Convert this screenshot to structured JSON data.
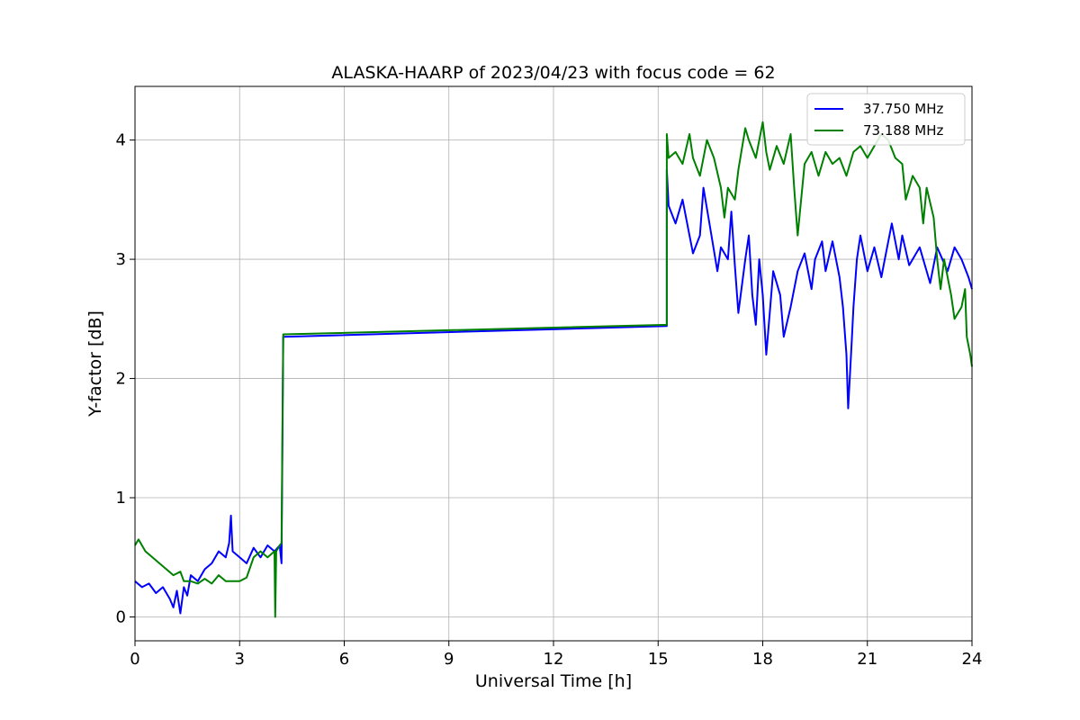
{
  "chart_data": {
    "type": "line",
    "title": "ALASKA-HAARP of 2023/04/23 with focus code = 62",
    "xlabel": "Universal Time [h]",
    "ylabel": "Y-factor [dB]",
    "xlim": [
      0,
      24
    ],
    "ylim": [
      -0.2,
      4.45
    ],
    "xticks": [
      0,
      3,
      6,
      9,
      12,
      15,
      18,
      21,
      24
    ],
    "yticks": [
      0,
      1,
      2,
      3,
      4
    ],
    "grid": true,
    "legend_position": "top-right",
    "series": [
      {
        "name": "37.750 MHz",
        "color": "#0000ff",
        "points": [
          [
            0.0,
            0.3
          ],
          [
            0.2,
            0.25
          ],
          [
            0.4,
            0.28
          ],
          [
            0.6,
            0.2
          ],
          [
            0.8,
            0.25
          ],
          [
            1.0,
            0.15
          ],
          [
            1.1,
            0.08
          ],
          [
            1.2,
            0.22
          ],
          [
            1.3,
            0.03
          ],
          [
            1.4,
            0.25
          ],
          [
            1.5,
            0.18
          ],
          [
            1.6,
            0.35
          ],
          [
            1.8,
            0.3
          ],
          [
            2.0,
            0.4
          ],
          [
            2.2,
            0.45
          ],
          [
            2.4,
            0.55
          ],
          [
            2.6,
            0.5
          ],
          [
            2.7,
            0.62
          ],
          [
            2.75,
            0.85
          ],
          [
            2.8,
            0.55
          ],
          [
            3.0,
            0.5
          ],
          [
            3.2,
            0.45
          ],
          [
            3.4,
            0.58
          ],
          [
            3.6,
            0.5
          ],
          [
            3.8,
            0.6
          ],
          [
            4.0,
            0.55
          ],
          [
            4.15,
            0.6
          ],
          [
            4.2,
            0.45
          ],
          [
            4.25,
            2.35
          ],
          [
            15.25,
            2.44
          ],
          [
            15.25,
            3.75
          ],
          [
            15.3,
            3.45
          ],
          [
            15.5,
            3.3
          ],
          [
            15.7,
            3.5
          ],
          [
            15.9,
            3.2
          ],
          [
            16.0,
            3.05
          ],
          [
            16.2,
            3.2
          ],
          [
            16.3,
            3.6
          ],
          [
            16.5,
            3.25
          ],
          [
            16.7,
            2.9
          ],
          [
            16.8,
            3.1
          ],
          [
            17.0,
            3.0
          ],
          [
            17.1,
            3.4
          ],
          [
            17.2,
            2.95
          ],
          [
            17.3,
            2.55
          ],
          [
            17.5,
            3.0
          ],
          [
            17.6,
            3.2
          ],
          [
            17.7,
            2.7
          ],
          [
            17.8,
            2.45
          ],
          [
            17.9,
            3.0
          ],
          [
            18.0,
            2.7
          ],
          [
            18.1,
            2.2
          ],
          [
            18.2,
            2.55
          ],
          [
            18.3,
            2.9
          ],
          [
            18.5,
            2.7
          ],
          [
            18.6,
            2.35
          ],
          [
            18.8,
            2.6
          ],
          [
            19.0,
            2.9
          ],
          [
            19.2,
            3.05
          ],
          [
            19.4,
            2.75
          ],
          [
            19.5,
            3.0
          ],
          [
            19.7,
            3.15
          ],
          [
            19.8,
            2.9
          ],
          [
            20.0,
            3.15
          ],
          [
            20.2,
            2.85
          ],
          [
            20.3,
            2.6
          ],
          [
            20.4,
            2.2
          ],
          [
            20.45,
            1.75
          ],
          [
            20.55,
            2.3
          ],
          [
            20.6,
            2.6
          ],
          [
            20.7,
            3.0
          ],
          [
            20.8,
            3.2
          ],
          [
            21.0,
            2.9
          ],
          [
            21.2,
            3.1
          ],
          [
            21.4,
            2.85
          ],
          [
            21.5,
            3.0
          ],
          [
            21.7,
            3.3
          ],
          [
            21.9,
            3.0
          ],
          [
            22.0,
            3.2
          ],
          [
            22.2,
            2.95
          ],
          [
            22.5,
            3.1
          ],
          [
            22.8,
            2.8
          ],
          [
            23.0,
            3.1
          ],
          [
            23.3,
            2.9
          ],
          [
            23.5,
            3.1
          ],
          [
            23.7,
            3.0
          ],
          [
            23.9,
            2.85
          ],
          [
            24.0,
            2.75
          ]
        ]
      },
      {
        "name": "73.188 MHz",
        "color": "#008000",
        "points": [
          [
            0.0,
            0.6
          ],
          [
            0.1,
            0.65
          ],
          [
            0.3,
            0.55
          ],
          [
            0.5,
            0.5
          ],
          [
            0.7,
            0.45
          ],
          [
            0.9,
            0.4
          ],
          [
            1.1,
            0.35
          ],
          [
            1.3,
            0.38
          ],
          [
            1.4,
            0.3
          ],
          [
            1.6,
            0.3
          ],
          [
            1.8,
            0.28
          ],
          [
            2.0,
            0.32
          ],
          [
            2.2,
            0.28
          ],
          [
            2.4,
            0.35
          ],
          [
            2.6,
            0.3
          ],
          [
            2.8,
            0.3
          ],
          [
            3.0,
            0.3
          ],
          [
            3.2,
            0.33
          ],
          [
            3.4,
            0.5
          ],
          [
            3.6,
            0.55
          ],
          [
            3.8,
            0.5
          ],
          [
            4.0,
            0.55
          ],
          [
            4.02,
            0.0
          ],
          [
            4.05,
            0.55
          ],
          [
            4.15,
            0.6
          ],
          [
            4.2,
            0.62
          ],
          [
            4.25,
            2.37
          ],
          [
            15.25,
            2.45
          ],
          [
            15.25,
            4.05
          ],
          [
            15.3,
            3.85
          ],
          [
            15.5,
            3.9
          ],
          [
            15.7,
            3.8
          ],
          [
            15.9,
            4.05
          ],
          [
            16.0,
            3.85
          ],
          [
            16.2,
            3.7
          ],
          [
            16.4,
            4.0
          ],
          [
            16.6,
            3.85
          ],
          [
            16.8,
            3.6
          ],
          [
            16.9,
            3.35
          ],
          [
            17.0,
            3.6
          ],
          [
            17.2,
            3.5
          ],
          [
            17.3,
            3.75
          ],
          [
            17.5,
            4.1
          ],
          [
            17.6,
            4.0
          ],
          [
            17.8,
            3.85
          ],
          [
            18.0,
            4.15
          ],
          [
            18.1,
            3.9
          ],
          [
            18.2,
            3.75
          ],
          [
            18.4,
            3.95
          ],
          [
            18.6,
            3.8
          ],
          [
            18.8,
            4.05
          ],
          [
            18.9,
            3.6
          ],
          [
            19.0,
            3.2
          ],
          [
            19.2,
            3.8
          ],
          [
            19.4,
            3.9
          ],
          [
            19.6,
            3.7
          ],
          [
            19.8,
            3.9
          ],
          [
            20.0,
            3.8
          ],
          [
            20.2,
            3.85
          ],
          [
            20.4,
            3.7
          ],
          [
            20.6,
            3.9
          ],
          [
            20.8,
            3.95
          ],
          [
            21.0,
            3.85
          ],
          [
            21.2,
            3.95
          ],
          [
            21.4,
            4.05
          ],
          [
            21.6,
            4.0
          ],
          [
            21.8,
            3.85
          ],
          [
            22.0,
            3.8
          ],
          [
            22.1,
            3.5
          ],
          [
            22.3,
            3.7
          ],
          [
            22.5,
            3.6
          ],
          [
            22.6,
            3.3
          ],
          [
            22.7,
            3.6
          ],
          [
            22.9,
            3.35
          ],
          [
            23.0,
            3.0
          ],
          [
            23.1,
            2.75
          ],
          [
            23.2,
            3.0
          ],
          [
            23.4,
            2.7
          ],
          [
            23.5,
            2.5
          ],
          [
            23.7,
            2.6
          ],
          [
            23.8,
            2.75
          ],
          [
            23.85,
            2.35
          ],
          [
            23.95,
            2.2
          ],
          [
            24.0,
            2.1
          ]
        ]
      }
    ]
  }
}
